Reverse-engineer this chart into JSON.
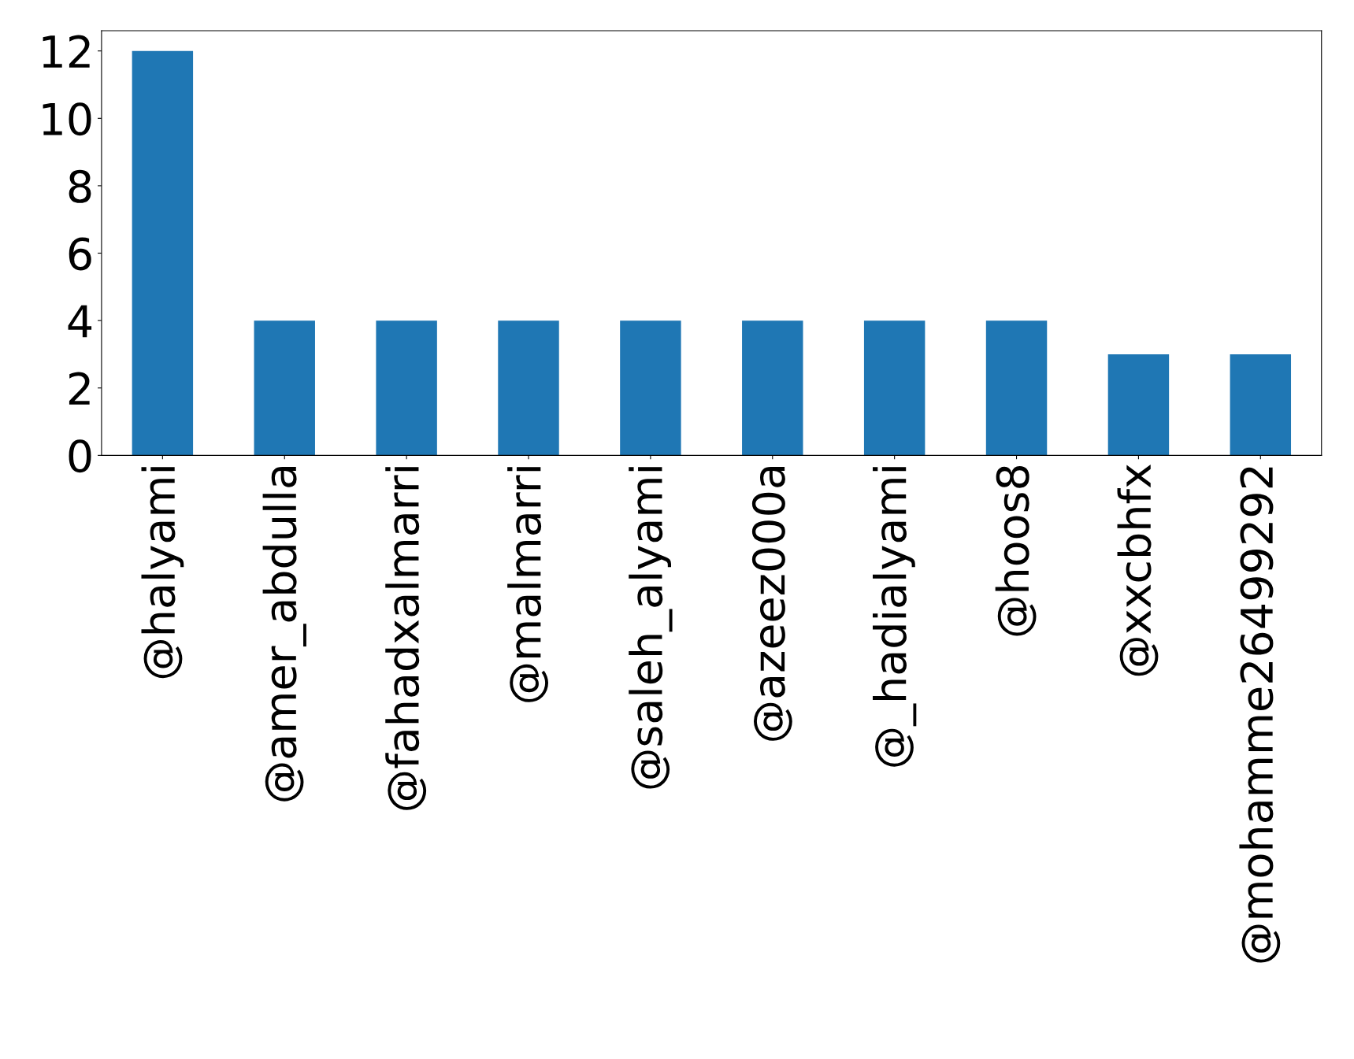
{
  "chart_data": {
    "type": "bar",
    "categories": [
      "@halyami",
      "@amer_abdulla",
      "@fahadxalmarri",
      "@malmarri",
      "@saleh_alyami",
      "@azeez000a",
      "@_hadialyami",
      "@hoos8",
      "@xxcbhfx",
      "@mohamme26499292"
    ],
    "values": [
      12,
      4,
      4,
      4,
      4,
      4,
      4,
      4,
      3,
      3
    ],
    "color": "#1f77b4",
    "ylim": [
      0,
      12.6
    ],
    "yticks": [
      0,
      2,
      4,
      6,
      8,
      10,
      12
    ],
    "grid": false
  }
}
